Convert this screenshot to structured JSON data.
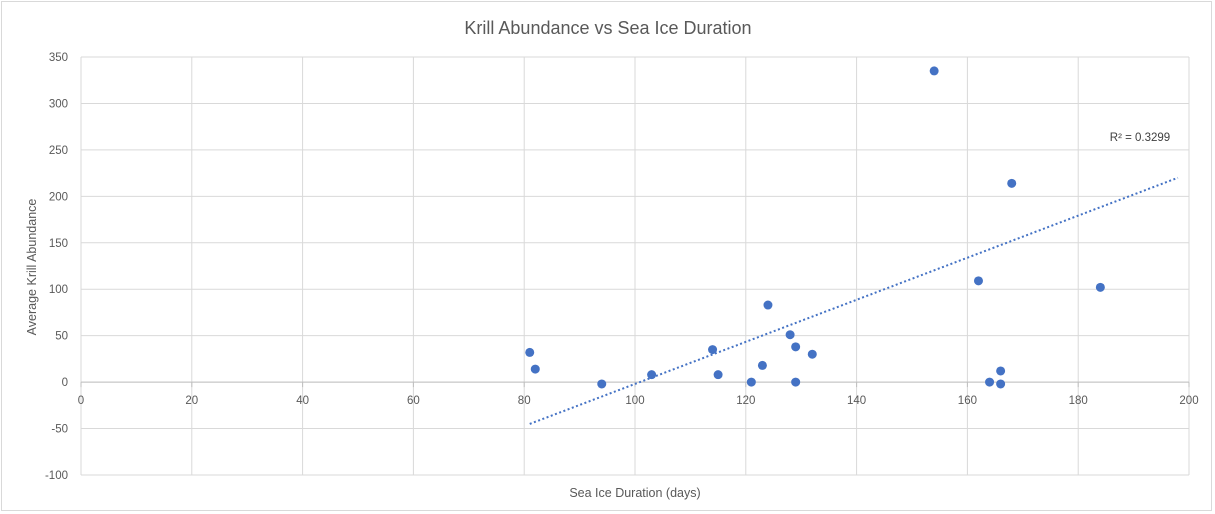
{
  "chart_data": {
    "type": "scatter",
    "title": "Krill Abundance vs Sea Ice Duration",
    "xlabel": "Sea Ice Duration (days)",
    "ylabel": "Average Krill Abundance",
    "xlim": [
      0,
      200
    ],
    "ylim": [
      -100,
      350
    ],
    "x_ticks": [
      "0",
      "20",
      "40",
      "60",
      "80",
      "100",
      "120",
      "140",
      "160",
      "180",
      "200"
    ],
    "y_ticks": [
      "350",
      "300",
      "250",
      "200",
      "150",
      "100",
      "50",
      "0",
      "-50",
      "-100"
    ],
    "grid": true,
    "marker_color": "#4472C4",
    "points": [
      {
        "x": 81,
        "y": 32
      },
      {
        "x": 82,
        "y": 14
      },
      {
        "x": 94,
        "y": -2
      },
      {
        "x": 103,
        "y": 8
      },
      {
        "x": 114,
        "y": 35
      },
      {
        "x": 115,
        "y": 8
      },
      {
        "x": 121,
        "y": 0
      },
      {
        "x": 123,
        "y": 18
      },
      {
        "x": 124,
        "y": 83
      },
      {
        "x": 128,
        "y": 51
      },
      {
        "x": 129,
        "y": 38
      },
      {
        "x": 129,
        "y": 0
      },
      {
        "x": 132,
        "y": 30
      },
      {
        "x": 154,
        "y": 335
      },
      {
        "x": 162,
        "y": 109
      },
      {
        "x": 164,
        "y": 0
      },
      {
        "x": 166,
        "y": 12
      },
      {
        "x": 166,
        "y": -2
      },
      {
        "x": 168,
        "y": 214
      },
      {
        "x": 184,
        "y": 102
      }
    ],
    "trendline": {
      "type": "linear",
      "x_start": 81,
      "y_start": -45,
      "x_end": 198,
      "y_end": 220,
      "color": "#4472C4",
      "r_squared_label": "R² = 0.3299"
    }
  }
}
